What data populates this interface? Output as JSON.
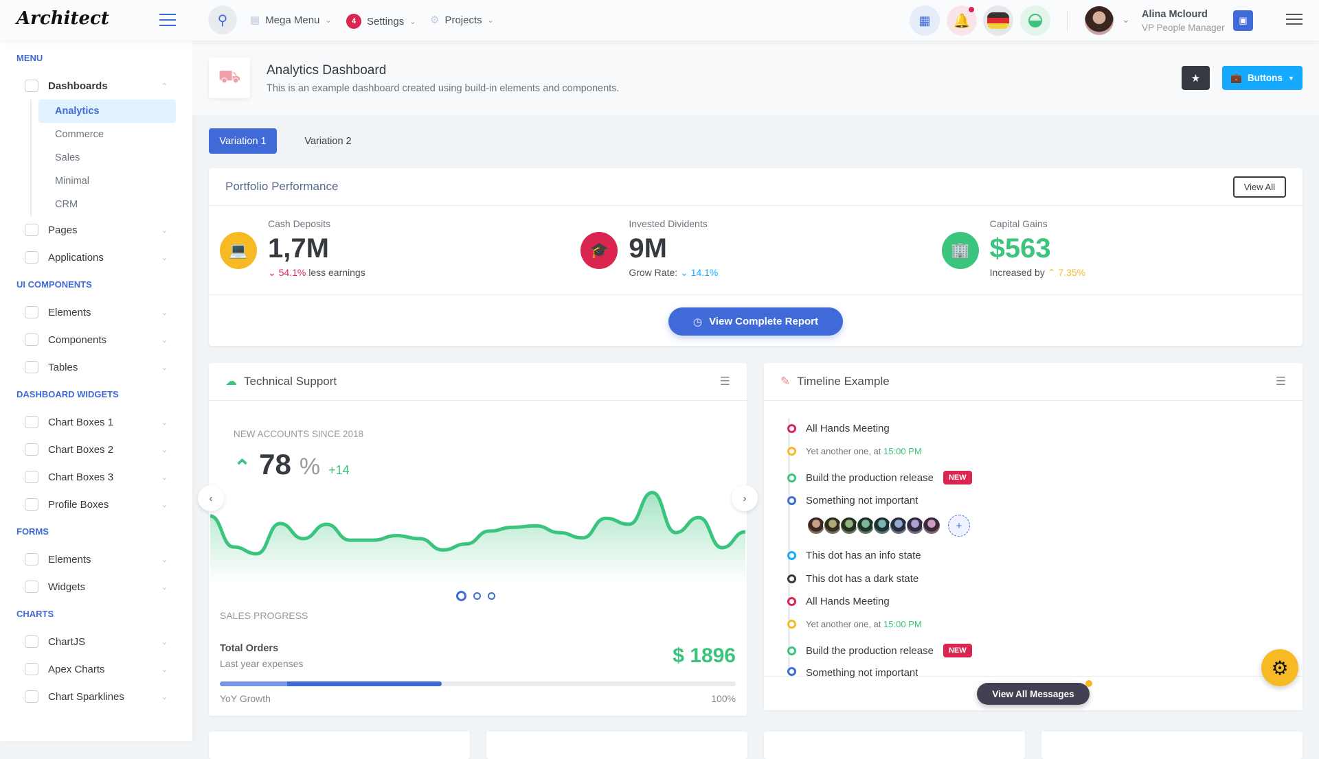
{
  "app": {
    "logo": "Architect"
  },
  "topbar": {
    "nav": [
      {
        "label": "Mega Menu",
        "icon": "gift-icon"
      },
      {
        "label": "Settings",
        "badge": "4"
      },
      {
        "label": "Projects",
        "icon": "cog-icon"
      }
    ],
    "user": {
      "name": "Alina Mclourd",
      "role": "VP People Manager"
    }
  },
  "sidebar": {
    "sections": [
      {
        "title": "Menu",
        "items": [
          {
            "label": "Dashboards",
            "open": true,
            "sub": [
              "Analytics",
              "Commerce",
              "Sales",
              "Minimal",
              "CRM"
            ],
            "active": "Analytics"
          },
          {
            "label": "Pages"
          },
          {
            "label": "Applications"
          }
        ]
      },
      {
        "title": "UI Components",
        "items": [
          {
            "label": "Elements"
          },
          {
            "label": "Components"
          },
          {
            "label": "Tables"
          }
        ]
      },
      {
        "title": "Dashboard Widgets",
        "items": [
          {
            "label": "Chart Boxes 1"
          },
          {
            "label": "Chart Boxes 2"
          },
          {
            "label": "Chart Boxes 3"
          },
          {
            "label": "Profile Boxes"
          }
        ]
      },
      {
        "title": "Forms",
        "items": [
          {
            "label": "Elements"
          },
          {
            "label": "Widgets"
          }
        ]
      },
      {
        "title": "Charts",
        "items": [
          {
            "label": "ChartJS"
          },
          {
            "label": "Apex Charts"
          },
          {
            "label": "Chart Sparklines"
          }
        ]
      }
    ]
  },
  "page": {
    "title": "Analytics Dashboard",
    "subtitle": "This is an example dashboard created using build-in elements and components.",
    "buttons_label": "Buttons"
  },
  "tabs": [
    "Variation 1",
    "Variation 2"
  ],
  "portfolio": {
    "title": "Portfolio Performance",
    "view_all": "View All",
    "report": "View Complete Report",
    "stats": [
      {
        "label": "Cash Deposits",
        "value": "1,7M",
        "pct": "54.1%",
        "pct_dir": "down",
        "suffix": "less earnings",
        "color": "#f7b924"
      },
      {
        "label": "Invested Dividents",
        "value": "9M",
        "prefix": "Grow Rate:",
        "pct": "14.1%",
        "pct_dir": "down",
        "color": "#d92550"
      },
      {
        "label": "Capital Gains",
        "value": "$563",
        "prefix": "Increased by",
        "pct": "7.35%",
        "pct_dir": "up",
        "color": "#3ac47d"
      }
    ]
  },
  "support": {
    "title": "Technical Support",
    "kicker": "NEW ACCOUNTS SINCE 2018",
    "value": "78",
    "unit": "%",
    "delta": "+14",
    "sales_label": "SALES PROGRESS",
    "orders": "Total Orders",
    "orders_sub": "Last year expenses",
    "amount": "$ 1896",
    "progress_label": "YoY Growth",
    "progress_max": "100%",
    "progress": 43,
    "progress_light": 13
  },
  "chart_data": {
    "type": "area",
    "values": [
      61,
      20,
      11,
      51,
      31,
      50,
      29,
      29,
      35,
      31,
      16,
      24,
      41,
      46,
      48,
      39,
      32,
      58,
      50,
      92,
      39,
      59,
      19,
      40
    ],
    "color": "#3ac47d"
  },
  "timeline": {
    "title": "Timeline Example",
    "button": "View All Messages",
    "items": [
      {
        "text": "All Hands Meeting",
        "color": "#d92550"
      },
      {
        "text": "Yet another one, at ",
        "time": "15:00 PM",
        "color": "#f7b924",
        "small": true
      },
      {
        "text": "Build the production release",
        "badge": "NEW",
        "color": "#3ac47d"
      },
      {
        "text": "Something not important",
        "color": "#3f6ad8",
        "avatars": 8
      },
      {
        "text": "This dot has an info state",
        "color": "#16aaff"
      },
      {
        "text": "This dot has a dark state",
        "color": "#343a40"
      },
      {
        "text": "All Hands Meeting",
        "color": "#d92550"
      },
      {
        "text": "Yet another one, at ",
        "time": "15:00 PM",
        "color": "#f7b924",
        "small": true
      },
      {
        "text": "Build the production release",
        "badge": "NEW",
        "color": "#3ac47d"
      },
      {
        "text": "Something not important",
        "color": "#3f6ad8"
      }
    ]
  }
}
